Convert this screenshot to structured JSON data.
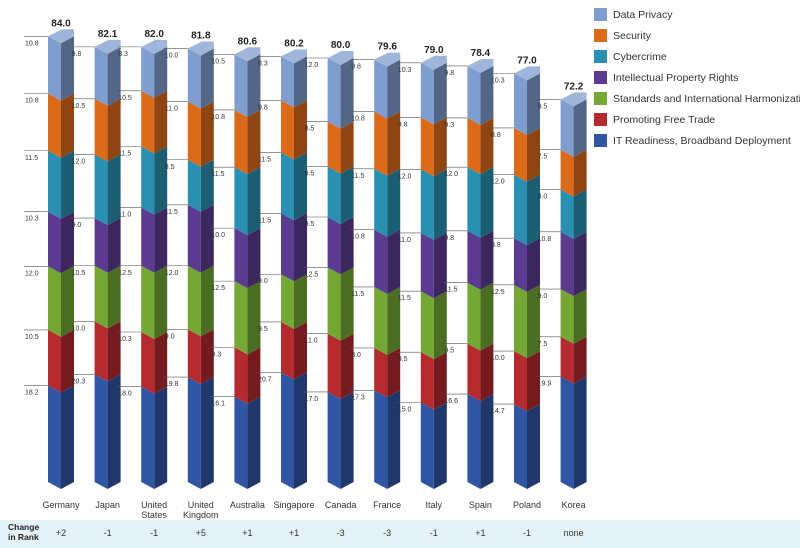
{
  "chart_data": {
    "type": "bar",
    "stacked": true,
    "categories": [
      "Germany",
      "Japan",
      "United States",
      "United Kingdom",
      "Australia",
      "Singapore",
      "Canada",
      "France",
      "Italy",
      "Spain",
      "Poland",
      "Korea"
    ],
    "category_lines": [
      [
        "Germany"
      ],
      [
        "Japan"
      ],
      [
        "United",
        "States"
      ],
      [
        "United",
        "Kingdom"
      ],
      [
        "Australia"
      ],
      [
        "Singapore"
      ],
      [
        "Canada"
      ],
      [
        "France"
      ],
      [
        "Italy"
      ],
      [
        "Spain"
      ],
      [
        "Poland"
      ],
      [
        "Korea"
      ]
    ],
    "totals": [
      "84.0",
      "82.1",
      "82.0",
      "81.8",
      "80.6",
      "80.2",
      "80.0",
      "79.6",
      "79.0",
      "78.4",
      "77.0",
      "72.2"
    ],
    "series": [
      {
        "name": "IT Readiness, Broadband Deployment",
        "color": "#2f55a4",
        "values": [
          18.2,
          20.3,
          18.0,
          19.8,
          16.1,
          20.7,
          17.0,
          17.3,
          15.0,
          16.6,
          14.7,
          19.9
        ]
      },
      {
        "name": "Promoting Free Trade",
        "color": "#b42a2f",
        "values": [
          10.5,
          10.0,
          10.3,
          9.0,
          9.3,
          9.5,
          11.0,
          8.0,
          9.5,
          9.5,
          10.0,
          7.5
        ]
      },
      {
        "name": "Standards and International Harmonization",
        "color": "#74a734",
        "values": [
          12.0,
          10.5,
          12.5,
          12.0,
          12.5,
          9.0,
          12.5,
          11.5,
          11.5,
          11.5,
          12.5,
          9.0
        ]
      },
      {
        "name": "Intellectual Property Rights",
        "color": "#5b3b8f",
        "values": [
          10.3,
          9.0,
          11.0,
          11.5,
          10.0,
          11.5,
          9.5,
          10.8,
          11.0,
          9.8,
          8.8,
          10.8
        ]
      },
      {
        "name": "Cybercrime",
        "color": "#2a8fb0",
        "values": [
          11.5,
          12.0,
          11.5,
          8.5,
          11.5,
          11.5,
          9.5,
          11.5,
          12.0,
          12.0,
          12.0,
          8.0
        ]
      },
      {
        "name": "Security",
        "color": "#dc6a1b",
        "values": [
          10.8,
          10.5,
          10.5,
          11.0,
          10.8,
          9.8,
          8.5,
          10.8,
          9.8,
          9.3,
          8.8,
          7.5
        ]
      },
      {
        "name": "Data Privacy",
        "color": "#7f9dce",
        "values": [
          10.8,
          9.8,
          8.3,
          10.0,
          10.5,
          8.3,
          12.0,
          9.8,
          10.3,
          9.8,
          10.3,
          9.5
        ]
      }
    ],
    "legend_order": [
      "Data Privacy",
      "Security",
      "Cybercrime",
      "Intellectual Property Rights",
      "Standards and International Harmonization",
      "Promoting Free Trade",
      "IT Readiness, Broadband Deployment"
    ],
    "legend_position": "top-right",
    "grid": false
  },
  "rank": {
    "label_line1": "Change",
    "label_line2": "in Rank",
    "values": [
      "+2",
      "-1",
      "-1",
      "+5",
      "+1",
      "+1",
      "-3",
      "-3",
      "-1",
      "+1",
      "-1",
      "none"
    ]
  }
}
